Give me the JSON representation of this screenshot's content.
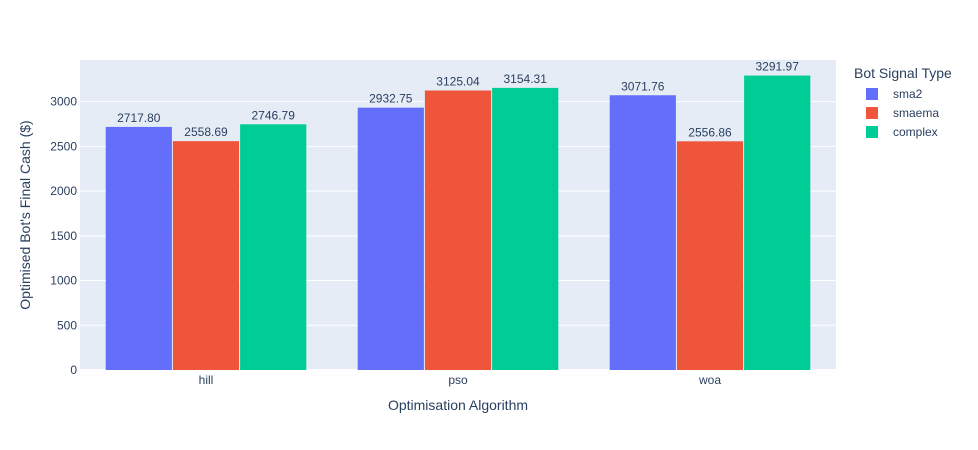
{
  "chart_data": {
    "type": "bar",
    "categories": [
      "hill",
      "pso",
      "woa"
    ],
    "series": [
      {
        "name": "sma2",
        "values": [
          2717.8,
          2932.75,
          3071.76
        ],
        "labels": [
          "2717.80",
          "2932.75",
          "3071.76"
        ],
        "color": "#636efa"
      },
      {
        "name": "smaema",
        "values": [
          2558.69,
          3125.04,
          2556.86
        ],
        "labels": [
          "2558.69",
          "3125.04",
          "2556.86"
        ],
        "color": "#ef553b"
      },
      {
        "name": "complex",
        "values": [
          2746.79,
          3154.31,
          3291.97
        ],
        "labels": [
          "2746.79",
          "3154.31",
          "3291.97"
        ],
        "color": "#00cc96"
      }
    ],
    "xlabel": "Optimisation Algorithm",
    "ylabel": "Optimised Bot's Final Cash ($)",
    "ylim": [
      0,
      3466
    ],
    "yticks": [
      0,
      500,
      1000,
      1500,
      2000,
      2500,
      3000
    ],
    "grid": true,
    "legend": {
      "title": "Bot Signal Type",
      "position": "top-right"
    },
    "colors": {
      "plot_background": "#e5ecf6",
      "grid": "#ffffff",
      "text": "#2a3f5f"
    }
  }
}
